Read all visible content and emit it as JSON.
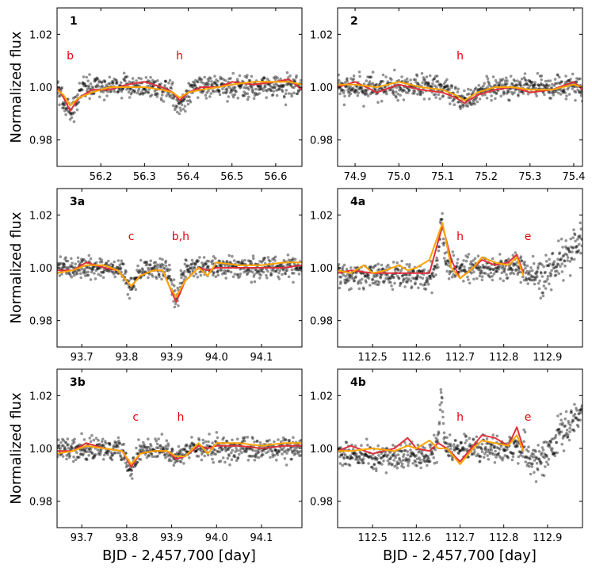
{
  "chart_data": {
    "type": "scatter",
    "ylabel": "Normalized flux",
    "xlabel": "BJD - 2,457,700 [day]",
    "ylim": [
      0.97,
      1.03
    ],
    "yticks": [
      0.98,
      1.0,
      1.02
    ],
    "ytick_labels": [
      "0.98",
      "1.00",
      "1.02"
    ],
    "colors": {
      "points": "#000000",
      "red_model": "#e0303a",
      "orange_model": "#ffa500"
    },
    "panels": [
      {
        "label": "1",
        "xlim": [
          56.1,
          56.66
        ],
        "xticks": [
          56.2,
          56.3,
          56.4,
          56.5,
          56.6
        ],
        "xtick_labels": [
          "56.2",
          "56.3",
          "56.4",
          "56.5",
          "56.6"
        ],
        "show_xlabel": false,
        "annotations": [
          {
            "text": "b",
            "x": 56.13,
            "y": 1.0105
          },
          {
            "text": "h",
            "x": 56.38,
            "y": 1.0105
          }
        ],
        "dips": [
          {
            "x": 56.13,
            "depth": 0.01,
            "width": 0.018
          },
          {
            "x": 56.38,
            "depth": 0.007,
            "width": 0.018
          }
        ],
        "red_model": [
          [
            56.1,
            1.0
          ],
          [
            56.115,
            0.996
          ],
          [
            56.13,
            0.991
          ],
          [
            56.15,
            0.996
          ],
          [
            56.18,
            0.999
          ],
          [
            56.22,
            0.999
          ],
          [
            56.26,
            1.001
          ],
          [
            56.3,
            1.002
          ],
          [
            56.34,
            1.0
          ],
          [
            56.365,
            0.998
          ],
          [
            56.38,
            0.995
          ],
          [
            56.4,
            0.998
          ],
          [
            56.43,
            1.0
          ],
          [
            56.47,
            1.0
          ],
          [
            56.5,
            1.002
          ],
          [
            56.55,
            1.001
          ],
          [
            56.6,
            1.002
          ],
          [
            56.63,
            1.003
          ],
          [
            56.66,
            0.999
          ]
        ],
        "orange_model": [
          [
            56.1,
            0.999
          ],
          [
            56.115,
            0.997
          ],
          [
            56.13,
            0.993
          ],
          [
            56.15,
            0.996
          ],
          [
            56.18,
            0.998
          ],
          [
            56.22,
            1.0
          ],
          [
            56.26,
            1.0
          ],
          [
            56.3,
            1.0
          ],
          [
            56.34,
            0.999
          ],
          [
            56.365,
            0.998
          ],
          [
            56.38,
            0.996
          ],
          [
            56.4,
            0.998
          ],
          [
            56.43,
            0.999
          ],
          [
            56.47,
            1.0
          ],
          [
            56.5,
            1.001
          ],
          [
            56.55,
            1.002
          ],
          [
            56.6,
            1.002
          ],
          [
            56.63,
            1.002
          ],
          [
            56.66,
            1.001
          ]
        ]
      },
      {
        "label": "2",
        "xlim": [
          74.86,
          75.42
        ],
        "xticks": [
          74.9,
          75.0,
          75.1,
          75.2,
          75.3,
          75.4
        ],
        "xtick_labels": [
          "74.9",
          "75.0",
          "75.1",
          "75.2",
          "75.3",
          "75.4"
        ],
        "show_xlabel": false,
        "annotations": [
          {
            "text": "h",
            "x": 75.14,
            "y": 1.0105
          }
        ],
        "dips": [
          {
            "x": 75.15,
            "depth": 0.006,
            "width": 0.03
          }
        ],
        "red_model": [
          [
            74.86,
            1.0
          ],
          [
            74.9,
            1.002
          ],
          [
            74.95,
            0.998
          ],
          [
            75.0,
            1.001
          ],
          [
            75.05,
            0.999
          ],
          [
            75.1,
            0.998
          ],
          [
            75.13,
            0.996
          ],
          [
            75.15,
            0.994
          ],
          [
            75.18,
            0.997
          ],
          [
            75.22,
            0.999
          ],
          [
            75.26,
            1.0
          ],
          [
            75.3,
            0.998
          ],
          [
            75.35,
            0.999
          ],
          [
            75.4,
            1.002
          ],
          [
            75.42,
            0.999
          ]
        ],
        "orange_model": [
          [
            74.86,
            1.001
          ],
          [
            74.9,
            1.001
          ],
          [
            74.95,
            1.0
          ],
          [
            75.0,
            1.002
          ],
          [
            75.05,
            1.0
          ],
          [
            75.1,
            0.999
          ],
          [
            75.13,
            0.997
          ],
          [
            75.15,
            0.995
          ],
          [
            75.18,
            0.998
          ],
          [
            75.22,
            1.0
          ],
          [
            75.26,
            1.0
          ],
          [
            75.3,
            0.999
          ],
          [
            75.35,
            0.999
          ],
          [
            75.4,
            1.001
          ],
          [
            75.42,
            1.0
          ]
        ]
      },
      {
        "label": "3a",
        "xlim": [
          93.645,
          94.19
        ],
        "xticks": [
          93.7,
          93.8,
          93.9,
          94.0,
          94.1
        ],
        "xtick_labels": [
          "93.7",
          "93.8",
          "93.9",
          "94.0",
          "94.1"
        ],
        "show_xlabel": false,
        "annotations": [
          {
            "text": "c",
            "x": 93.81,
            "y": 1.0105
          },
          {
            "text": "b,h",
            "x": 93.92,
            "y": 1.0105
          }
        ],
        "dips": [
          {
            "x": 93.81,
            "depth": 0.008,
            "width": 0.014
          },
          {
            "x": 93.91,
            "depth": 0.011,
            "width": 0.014
          }
        ],
        "red_model": [
          [
            93.645,
            0.999
          ],
          [
            93.68,
            0.999
          ],
          [
            93.71,
            1.002
          ],
          [
            93.75,
            1.0
          ],
          [
            93.78,
            0.999
          ],
          [
            93.795,
            0.996
          ],
          [
            93.81,
            0.993
          ],
          [
            93.83,
            0.997
          ],
          [
            93.86,
            0.999
          ],
          [
            93.88,
            0.999
          ],
          [
            93.895,
            0.993
          ],
          [
            93.91,
            0.987
          ],
          [
            93.93,
            0.995
          ],
          [
            93.96,
            1.0
          ],
          [
            93.98,
            0.999
          ],
          [
            94.0,
            1.0
          ],
          [
            94.05,
            1.0
          ],
          [
            94.1,
            1.0
          ],
          [
            94.15,
            1.0
          ],
          [
            94.19,
            1.001
          ]
        ],
        "orange_model": [
          [
            93.645,
            0.998
          ],
          [
            93.68,
            0.999
          ],
          [
            93.71,
            1.001
          ],
          [
            93.75,
            1.001
          ],
          [
            93.78,
            0.999
          ],
          [
            93.795,
            0.996
          ],
          [
            93.81,
            0.993
          ],
          [
            93.83,
            0.997
          ],
          [
            93.86,
            0.999
          ],
          [
            93.88,
            0.999
          ],
          [
            93.895,
            0.993
          ],
          [
            93.91,
            0.989
          ],
          [
            93.93,
            0.995
          ],
          [
            93.96,
            1.0
          ],
          [
            93.98,
            0.997
          ],
          [
            94.0,
            1.002
          ],
          [
            94.05,
            1.001
          ],
          [
            94.1,
            1.001
          ],
          [
            94.15,
            1.002
          ],
          [
            94.19,
            1.002
          ]
        ]
      },
      {
        "label": "4a",
        "xlim": [
          112.42,
          112.98
        ],
        "xticks": [
          112.5,
          112.6,
          112.7,
          112.8,
          112.9
        ],
        "xtick_labels": [
          "112.5",
          "112.6",
          "112.7",
          "112.8",
          "112.9"
        ],
        "show_xlabel": false,
        "annotations": [
          {
            "text": "h",
            "x": 112.7,
            "y": 1.0105
          },
          {
            "text": "e",
            "x": 112.855,
            "y": 1.0105
          }
        ],
        "dips": [],
        "red_model": [
          [
            112.42,
            0.998
          ],
          [
            112.45,
            0.999
          ],
          [
            112.5,
            0.998
          ],
          [
            112.55,
            0.998
          ],
          [
            112.6,
            0.998
          ],
          [
            112.63,
            0.998
          ],
          [
            112.66,
            1.016
          ],
          [
            112.68,
            1.003
          ],
          [
            112.7,
            0.996
          ],
          [
            112.73,
            1.0
          ],
          [
            112.75,
            1.003
          ],
          [
            112.78,
            1.001
          ],
          [
            112.81,
            1.002
          ],
          [
            112.83,
            1.005
          ],
          [
            112.845,
            0.998
          ]
        ],
        "orange_model": [
          [
            112.42,
            0.999
          ],
          [
            112.45,
            0.998
          ],
          [
            112.48,
            1.001
          ],
          [
            112.5,
            0.998
          ],
          [
            112.53,
            0.999
          ],
          [
            112.56,
            1.001
          ],
          [
            112.58,
            0.999
          ],
          [
            112.6,
            1.0
          ],
          [
            112.63,
            1.003
          ],
          [
            112.66,
            1.017
          ],
          [
            112.68,
            1.0
          ],
          [
            112.7,
            0.996
          ],
          [
            112.73,
            1.0
          ],
          [
            112.75,
            1.004
          ],
          [
            112.78,
            1.002
          ],
          [
            112.81,
            1.001
          ],
          [
            112.83,
            1.004
          ],
          [
            112.845,
            0.997
          ]
        ]
      },
      {
        "label": "3b",
        "xlim": [
          93.645,
          94.19
        ],
        "xticks": [
          93.7,
          93.8,
          93.9,
          94.0,
          94.1
        ],
        "xtick_labels": [
          "93.7",
          "93.8",
          "93.9",
          "94.0",
          "94.1"
        ],
        "show_xlabel": true,
        "annotations": [
          {
            "text": "c",
            "x": 93.82,
            "y": 1.0105
          },
          {
            "text": "h",
            "x": 93.92,
            "y": 1.0105
          }
        ],
        "dips": [
          {
            "x": 93.81,
            "depth": 0.007,
            "width": 0.014
          },
          {
            "x": 93.91,
            "depth": 0.004,
            "width": 0.014
          }
        ],
        "red_model": [
          [
            93.645,
            0.999
          ],
          [
            93.68,
            0.999
          ],
          [
            93.71,
            1.002
          ],
          [
            93.75,
            1.0
          ],
          [
            93.79,
            0.999
          ],
          [
            93.81,
            0.993
          ],
          [
            93.83,
            0.998
          ],
          [
            93.86,
            0.999
          ],
          [
            93.89,
            0.999
          ],
          [
            93.91,
            0.996
          ],
          [
            93.93,
            0.997
          ],
          [
            93.96,
            1.001
          ],
          [
            93.98,
            1.0
          ],
          [
            94.0,
            1.001
          ],
          [
            94.05,
            1.001
          ],
          [
            94.1,
            1.0
          ],
          [
            94.15,
            1.001
          ],
          [
            94.19,
            1.001
          ]
        ],
        "orange_model": [
          [
            93.645,
            0.998
          ],
          [
            93.68,
            0.999
          ],
          [
            93.71,
            1.001
          ],
          [
            93.75,
            1.0
          ],
          [
            93.79,
            0.999
          ],
          [
            93.81,
            0.994
          ],
          [
            93.83,
            0.998
          ],
          [
            93.86,
            0.999
          ],
          [
            93.89,
            0.999
          ],
          [
            93.91,
            0.997
          ],
          [
            93.93,
            0.997
          ],
          [
            93.96,
            1.002
          ],
          [
            93.98,
            0.998
          ],
          [
            94.0,
            1.002
          ],
          [
            94.05,
            1.002
          ],
          [
            94.1,
            1.001
          ],
          [
            94.15,
            1.002
          ],
          [
            94.19,
            1.002
          ]
        ]
      },
      {
        "label": "4b",
        "xlim": [
          112.42,
          112.98
        ],
        "xticks": [
          112.5,
          112.6,
          112.7,
          112.8,
          112.9
        ],
        "xtick_labels": [
          "112.5",
          "112.6",
          "112.7",
          "112.8",
          "112.9"
        ],
        "show_xlabel": true,
        "annotations": [
          {
            "text": "h",
            "x": 112.7,
            "y": 1.0105
          },
          {
            "text": "e",
            "x": 112.855,
            "y": 1.0105
          }
        ],
        "dips": [],
        "red_model": [
          [
            112.42,
            0.999
          ],
          [
            112.45,
            1.001
          ],
          [
            112.5,
            0.998
          ],
          [
            112.55,
            1.0
          ],
          [
            112.58,
            1.004
          ],
          [
            112.6,
            1.0
          ],
          [
            112.63,
            0.999
          ],
          [
            112.65,
            1.002
          ],
          [
            112.67,
            1.0
          ],
          [
            112.7,
            0.995
          ],
          [
            112.73,
            1.001
          ],
          [
            112.75,
            1.005
          ],
          [
            112.78,
            1.004
          ],
          [
            112.81,
            1.001
          ],
          [
            112.83,
            1.008
          ],
          [
            112.845,
            1.0
          ]
        ],
        "orange_model": [
          [
            112.42,
            0.999
          ],
          [
            112.45,
            0.999
          ],
          [
            112.5,
            1.0
          ],
          [
            112.55,
            0.999
          ],
          [
            112.58,
            1.001
          ],
          [
            112.6,
            1.0
          ],
          [
            112.63,
            1.003
          ],
          [
            112.65,
            1.0
          ],
          [
            112.67,
            1.0
          ],
          [
            112.7,
            0.994
          ],
          [
            112.73,
            1.0
          ],
          [
            112.75,
            1.003
          ],
          [
            112.78,
            1.002
          ],
          [
            112.81,
            1.001
          ],
          [
            112.83,
            1.005
          ],
          [
            112.845,
            0.999
          ]
        ]
      }
    ]
  }
}
